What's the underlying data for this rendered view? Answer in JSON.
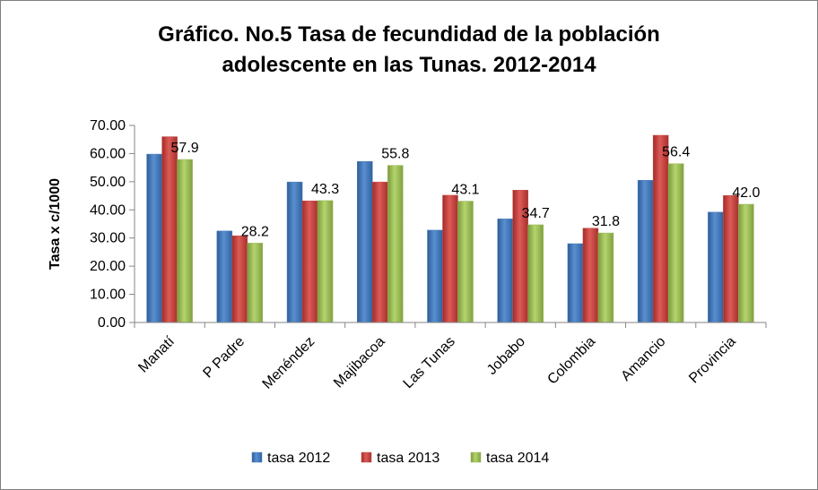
{
  "chart_data": {
    "type": "bar",
    "title": [
      "Gráfico. No.5 Tasa de fecundidad de la población",
      "adolescente en las Tunas. 2012-2014"
    ],
    "xlabel": "",
    "ylabel": "Tasa  x c/1000",
    "ylim": [
      0,
      70
    ],
    "yticks": [
      "0.00",
      "10.00",
      "20.00",
      "30.00",
      "40.00",
      "50.00",
      "60.00",
      "70.00"
    ],
    "categories": [
      "Manatí",
      "P Padre",
      "Menéndez",
      "Majibacoa",
      "Las Tunas",
      "Jobabo",
      "Colombia",
      "Amancio",
      "Provincia"
    ],
    "series": [
      {
        "name": "tasa 2012",
        "color": "#4a7ebb",
        "values": [
          59.8,
          32.5,
          49.9,
          57.2,
          32.8,
          36.8,
          28.0,
          50.5,
          39.2
        ]
      },
      {
        "name": "tasa 2013",
        "color": "#c0504d",
        "values": [
          66.0,
          30.8,
          43.2,
          49.9,
          45.2,
          47.0,
          33.5,
          66.5,
          45.1
        ]
      },
      {
        "name": "tasa 2014",
        "color": "#9bbb59",
        "values": [
          57.9,
          28.2,
          43.3,
          55.8,
          43.1,
          34.7,
          31.8,
          56.4,
          42.0
        ]
      }
    ],
    "data_labels": [
      "57.9",
      "28.2",
      "43.3",
      "55.8",
      "43.1",
      "34.7",
      "31.8",
      "56.4",
      "42.0"
    ],
    "legend_position": "bottom",
    "grid": false
  }
}
